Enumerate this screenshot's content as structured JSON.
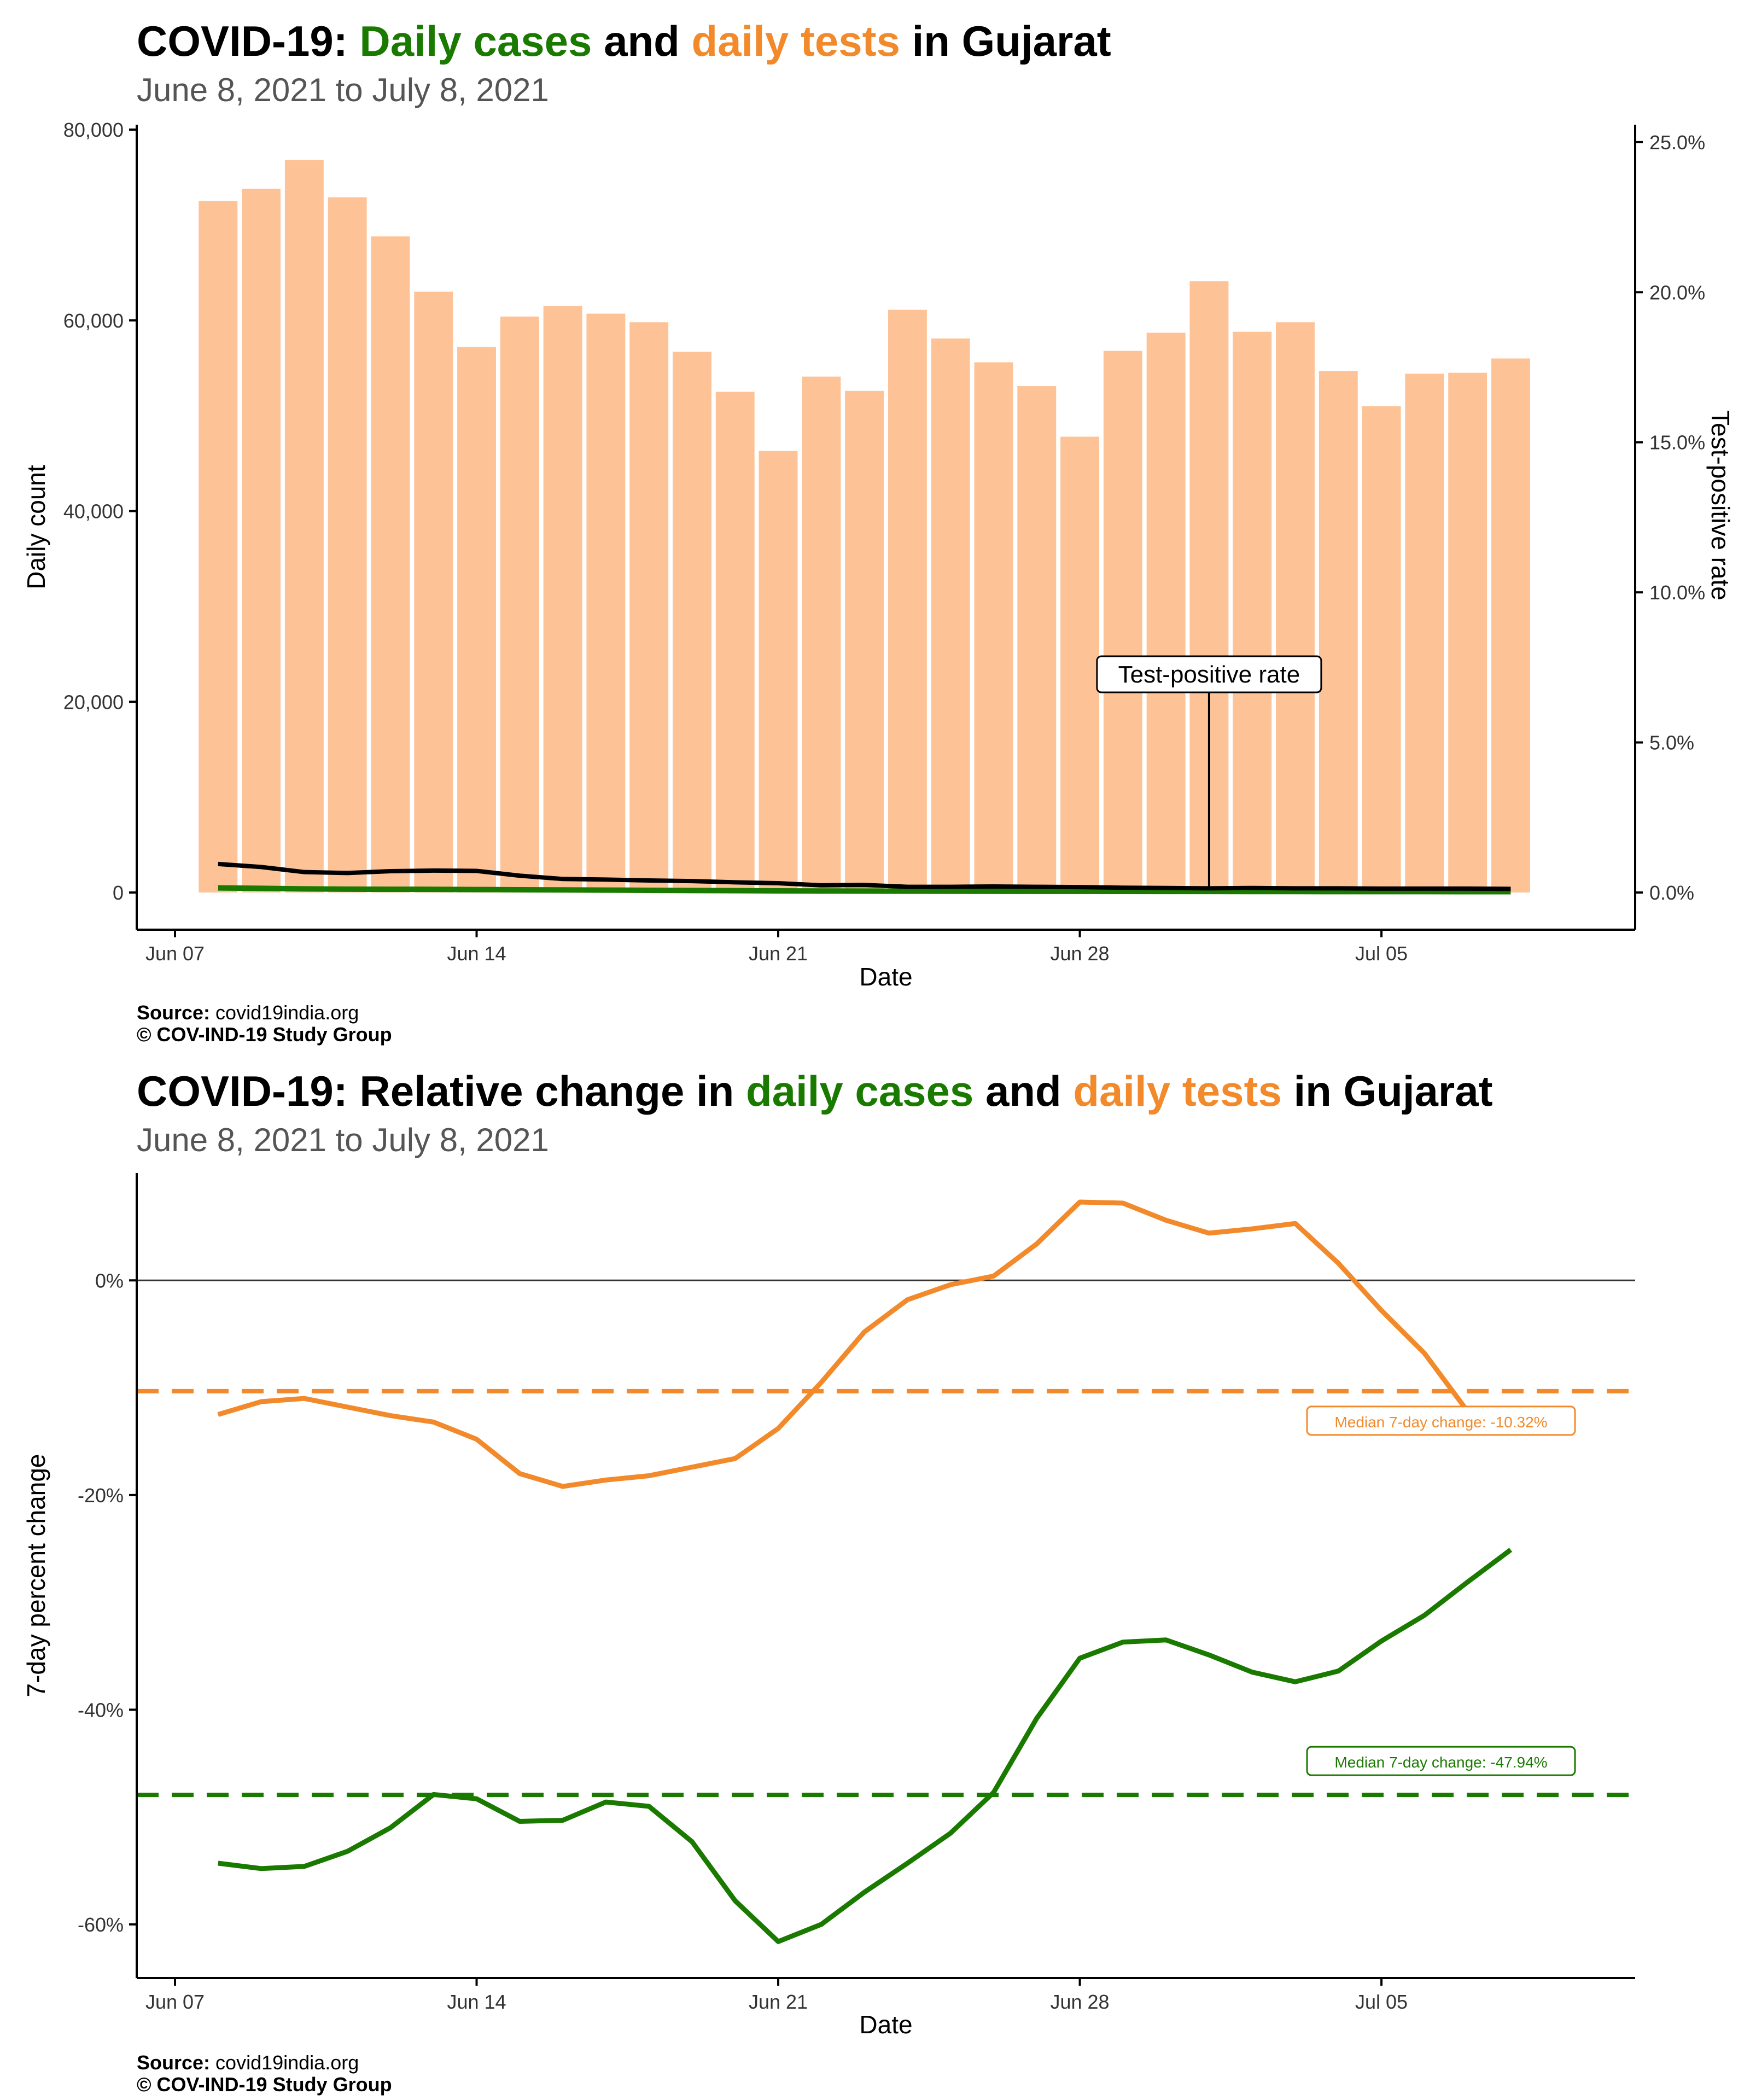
{
  "charts": [
    {
      "title_prefix": "COVID-19: ",
      "title_part1": "Daily cases",
      "title_mid": " and ",
      "title_part2": "daily tests",
      "title_suffix": " in Gujarat",
      "subtitle": "June  8, 2021 to July  8, 2021",
      "source_label": "Source:",
      "source_value": " covid19india.org",
      "copyright": "© COV-IND-19 Study Group"
    },
    {
      "title_prefix": "COVID-19: Relative change in ",
      "title_part1": "daily cases",
      "title_mid": " and ",
      "title_part2": "daily tests",
      "title_suffix": " in Gujarat",
      "subtitle": "June  8, 2021 to July  8, 2021",
      "source_label": "Source:",
      "source_value": " covid19india.org",
      "copyright": "© COV-IND-19 Study Group"
    }
  ],
  "colors": {
    "cases": "#1a7a00",
    "tests": "#f28a2b",
    "tests_bar": "#fdc397",
    "tpr": "#000000"
  },
  "chart_data": [
    {
      "type": "bar",
      "xlabel": "Date",
      "ylabel": "Daily count",
      "y2label": "Test-positive rate",
      "ylim": [
        0,
        80000
      ],
      "y2lim": [
        0,
        0.26
      ],
      "xlim": [
        "2021-06-07",
        "2021-07-10"
      ],
      "x_ticks": [
        "Jun 07",
        "Jun 14",
        "Jun 21",
        "Jun 28",
        "Jul 05"
      ],
      "y_ticks": [
        "0",
        "20,000",
        "40,000",
        "60,000",
        "80,000"
      ],
      "y2_ticks": [
        "0.0%",
        "5.0%",
        "10.0%",
        "15.0%",
        "20.0%",
        "25.0%"
      ],
      "annotation": "Test-positive rate",
      "annotation_date": "2021-07-01",
      "dates": [
        "2021-06-08",
        "2021-06-09",
        "2021-06-10",
        "2021-06-11",
        "2021-06-12",
        "2021-06-13",
        "2021-06-14",
        "2021-06-15",
        "2021-06-16",
        "2021-06-17",
        "2021-06-18",
        "2021-06-19",
        "2021-06-20",
        "2021-06-21",
        "2021-06-22",
        "2021-06-23",
        "2021-06-24",
        "2021-06-25",
        "2021-06-26",
        "2021-06-27",
        "2021-06-28",
        "2021-06-29",
        "2021-06-30",
        "2021-07-01",
        "2021-07-02",
        "2021-07-03",
        "2021-07-04",
        "2021-07-05",
        "2021-07-06",
        "2021-07-07",
        "2021-07-08"
      ],
      "series": [
        {
          "name": "daily tests",
          "values": [
            72500,
            73800,
            76800,
            72900,
            68800,
            63000,
            57200,
            60400,
            61500,
            60700,
            59800,
            56700,
            52500,
            46300,
            54100,
            52600,
            61100,
            58100,
            55600,
            53100,
            47800,
            56800,
            58700,
            64100,
            58800,
            59800,
            54700,
            51000,
            54400,
            54500,
            56000
          ]
        },
        {
          "name": "daily cases",
          "values": [
            480,
            440,
            380,
            350,
            340,
            330,
            310,
            290,
            270,
            250,
            230,
            210,
            190,
            170,
            160,
            150,
            140,
            135,
            130,
            125,
            120,
            115,
            110,
            105,
            100,
            97,
            95,
            92,
            90,
            88,
            86
          ]
        },
        {
          "name": "test-positive rate",
          "values": [
            0.0095,
            0.0085,
            0.0068,
            0.0065,
            0.0071,
            0.0073,
            0.0072,
            0.0056,
            0.0045,
            0.0043,
            0.004,
            0.0038,
            0.0034,
            0.0031,
            0.0024,
            0.0025,
            0.0019,
            0.0019,
            0.002,
            0.0019,
            0.0018,
            0.0016,
            0.0015,
            0.0014,
            0.0015,
            0.0014,
            0.0014,
            0.0013,
            0.0013,
            0.0013,
            0.0012
          ]
        }
      ]
    },
    {
      "type": "line",
      "xlabel": "Date",
      "ylabel": "7-day percent change",
      "ylim": [
        -65,
        10
      ],
      "xlim": [
        "2021-06-07",
        "2021-07-10"
      ],
      "x_ticks": [
        "Jun 07",
        "Jun 14",
        "Jun 21",
        "Jun 28",
        "Jul 05"
      ],
      "y_ticks": [
        "0%",
        "-20%",
        "-40%",
        "-60%"
      ],
      "median_tests": -10.32,
      "median_cases": -47.94,
      "median_tests_label": "Median 7-day change: -10.32%",
      "median_cases_label": "Median 7-day change: -47.94%",
      "dates": [
        "2021-06-08",
        "2021-06-09",
        "2021-06-10",
        "2021-06-11",
        "2021-06-12",
        "2021-06-13",
        "2021-06-14",
        "2021-06-15",
        "2021-06-16",
        "2021-06-17",
        "2021-06-18",
        "2021-06-19",
        "2021-06-20",
        "2021-06-21",
        "2021-06-22",
        "2021-06-23",
        "2021-06-24",
        "2021-06-25",
        "2021-06-26",
        "2021-06-27",
        "2021-06-28",
        "2021-06-29",
        "2021-06-30",
        "2021-07-01",
        "2021-07-02",
        "2021-07-03",
        "2021-07-04",
        "2021-07-05",
        "2021-07-06",
        "2021-07-07",
        "2021-07-08"
      ],
      "series": [
        {
          "name": "daily tests",
          "values": [
            -12.5,
            -11.3,
            -11.0,
            -11.8,
            -12.6,
            -13.2,
            -14.8,
            -18.0,
            -19.2,
            -18.6,
            -18.2,
            -17.4,
            -16.6,
            -13.8,
            -9.5,
            -4.8,
            -1.8,
            -0.4,
            0.4,
            3.4,
            7.3,
            7.2,
            5.6,
            4.4,
            4.8,
            5.3,
            1.6,
            -2.8,
            -6.8,
            -12.2,
            -12.2
          ]
        },
        {
          "name": "daily cases",
          "values": [
            -54.3,
            -54.8,
            -54.6,
            -53.2,
            -51.0,
            -47.9,
            -48.3,
            -50.4,
            -50.3,
            -48.6,
            -49.0,
            -52.3,
            -57.8,
            -61.6,
            -60.0,
            -57.0,
            -54.3,
            -51.5,
            -47.7,
            -40.8,
            -35.2,
            -33.7,
            -33.5,
            -34.9,
            -36.5,
            -37.4,
            -36.4,
            -33.6,
            -31.2,
            -28.1,
            -25.1
          ]
        }
      ]
    }
  ]
}
